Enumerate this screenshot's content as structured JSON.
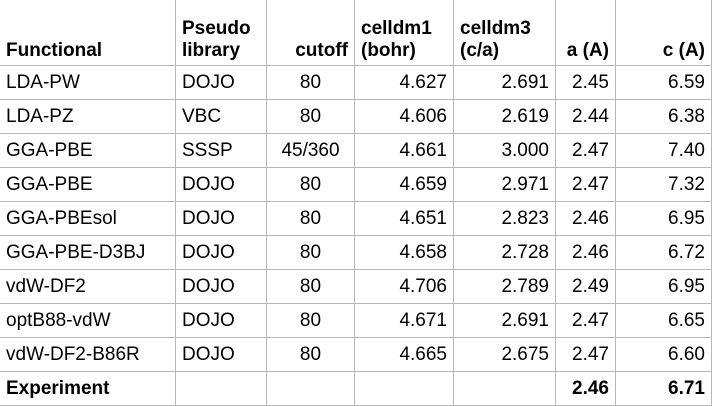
{
  "header": {
    "functional": "Functional",
    "pseudo_line1": "Pseudo",
    "pseudo_line2": "library",
    "cutoff": "cutoff",
    "celldm1_line1": "celldm1",
    "celldm1_line2": "(bohr)",
    "celldm3_line1": "celldm3",
    "celldm3_line2": "(c/a)",
    "a": "a (A)",
    "c": "c (A)"
  },
  "rows": [
    {
      "functional": "LDA-PW",
      "pseudo": "DOJO",
      "cutoff": "80",
      "celldm1": "4.627",
      "celldm3": "2.691",
      "a": "2.45",
      "c": "6.59"
    },
    {
      "functional": "LDA-PZ",
      "pseudo": "VBC",
      "cutoff": "80",
      "celldm1": "4.606",
      "celldm3": "2.619",
      "a": "2.44",
      "c": "6.38"
    },
    {
      "functional": "GGA-PBE",
      "pseudo": "SSSP",
      "cutoff": "45/360",
      "celldm1": "4.661",
      "celldm3": "3.000",
      "a": "2.47",
      "c": "7.40"
    },
    {
      "functional": "GGA-PBE",
      "pseudo": "DOJO",
      "cutoff": "80",
      "celldm1": "4.659",
      "celldm3": "2.971",
      "a": "2.47",
      "c": "7.32"
    },
    {
      "functional": "GGA-PBEsol",
      "pseudo": "DOJO",
      "cutoff": "80",
      "celldm1": "4.651",
      "celldm3": "2.823",
      "a": "2.46",
      "c": "6.95"
    },
    {
      "functional": "GGA-PBE-D3BJ",
      "pseudo": "DOJO",
      "cutoff": "80",
      "celldm1": "4.658",
      "celldm3": "2.728",
      "a": "2.46",
      "c": "6.72"
    },
    {
      "functional": "vdW-DF2",
      "pseudo": "DOJO",
      "cutoff": "80",
      "celldm1": "4.706",
      "celldm3": "2.789",
      "a": "2.49",
      "c": "6.95"
    },
    {
      "functional": "optB88-vdW",
      "pseudo": "DOJO",
      "cutoff": "80",
      "celldm1": "4.671",
      "celldm3": "2.691",
      "a": "2.47",
      "c": "6.65"
    },
    {
      "functional": "vdW-DF2-B86R",
      "pseudo": "DOJO",
      "cutoff": "80",
      "celldm1": "4.665",
      "celldm3": "2.675",
      "a": "2.47",
      "c": "6.60"
    }
  ],
  "experiment": {
    "label": "Experiment",
    "a": "2.46",
    "c": "6.71"
  }
}
